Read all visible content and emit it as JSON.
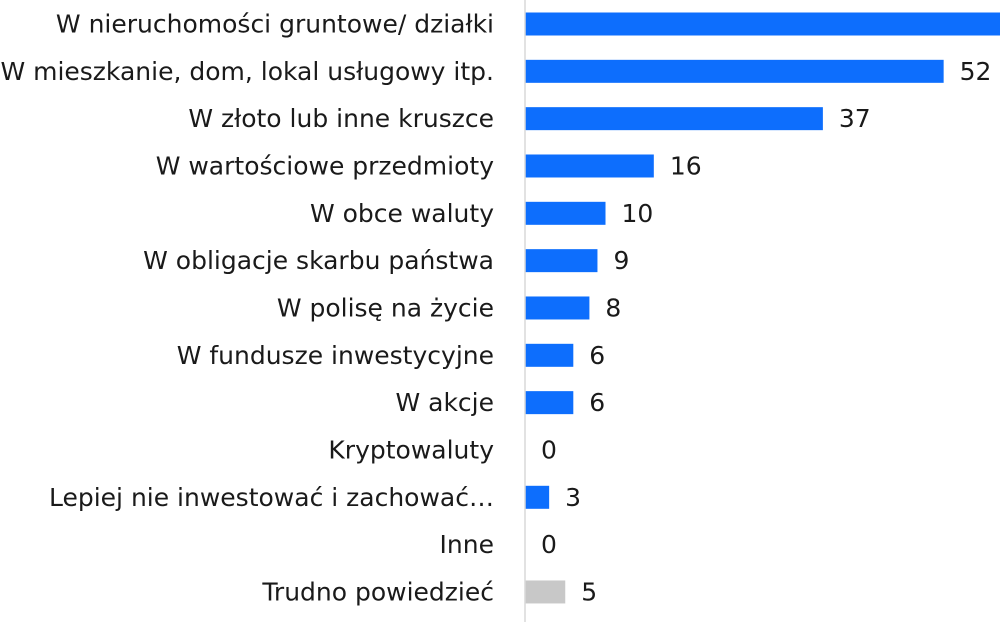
{
  "chart_data": {
    "type": "bar",
    "orientation": "horizontal",
    "categories": [
      "W nieruchomości gruntowe/ działki",
      "W mieszkanie, dom, lokal usługowy itp.",
      "W złoto lub inne kruszce",
      "W wartościowe przedmioty",
      "W obce waluty",
      "W obligacje skarbu państwa",
      "W polisę na życie",
      "W fundusze inwestycyjne",
      "W akcje",
      "Kryptowaluty",
      "Lepiej nie inwestować i zachować…",
      "Inne",
      "Trudno powiedzieć"
    ],
    "values": [
      59,
      52,
      37,
      16,
      10,
      9,
      8,
      6,
      6,
      0,
      3,
      0,
      5
    ],
    "value_labels": [
      "",
      "52",
      "37",
      "16",
      "10",
      "9",
      "8",
      "6",
      "6",
      "0",
      "3",
      "0",
      "5"
    ],
    "bar_colors": [
      "#0d6efd",
      "#0d6efd",
      "#0d6efd",
      "#0d6efd",
      "#0d6efd",
      "#0d6efd",
      "#0d6efd",
      "#0d6efd",
      "#0d6efd",
      "#0d6efd",
      "#0d6efd",
      "#0d6efd",
      "#c8c8c8"
    ],
    "xlim": [
      0,
      59
    ],
    "grid": false,
    "legend": "none"
  }
}
